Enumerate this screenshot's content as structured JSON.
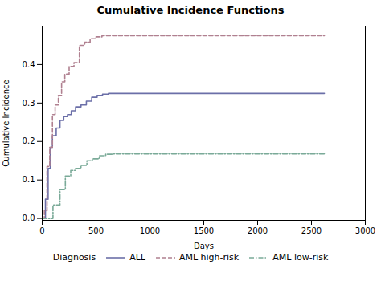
{
  "chart_data": {
    "type": "line",
    "title": "Cumulative Incidence Functions",
    "xlabel": "Days",
    "ylabel": "Cumulative Incidence",
    "xlim": [
      0,
      3000
    ],
    "ylim": [
      -0.005,
      0.5
    ],
    "xticks": [
      0,
      500,
      1000,
      1500,
      2000,
      2500,
      3000
    ],
    "yticks": [
      {
        "value": 0,
        "label": "0.0"
      },
      0.1,
      0.2,
      0.3,
      0.4
    ],
    "grid": false,
    "legend": "bottom",
    "legend_title": "Diagnosis",
    "series": [
      {
        "name": "ALL",
        "color": "#6b6fa8",
        "line_style": "solid",
        "x": [
          0,
          0,
          30,
          30,
          55,
          55,
          75,
          75,
          95,
          95,
          130,
          130,
          165,
          165,
          200,
          200,
          235,
          235,
          270,
          270,
          310,
          310,
          360,
          360,
          410,
          410,
          460,
          460,
          510,
          510,
          560,
          560,
          615,
          615,
          665,
          665,
          2080,
          2080,
          2620
        ],
        "values": [
          0,
          0,
          0,
          0.05,
          0.05,
          0.13,
          0.13,
          0.185,
          0.185,
          0.215,
          0.215,
          0.235,
          0.235,
          0.255,
          0.255,
          0.265,
          0.265,
          0.27,
          0.27,
          0.28,
          0.28,
          0.29,
          0.29,
          0.295,
          0.295,
          0.305,
          0.305,
          0.315,
          0.315,
          0.32,
          0.32,
          0.323,
          0.323,
          0.325,
          0.325,
          0.325,
          0.325,
          0.325,
          0.325
        ]
      },
      {
        "name": "AML high-risk",
        "color": "#b08090",
        "line_style": "dashed",
        "x": [
          0,
          0,
          20,
          20,
          45,
          45,
          70,
          70,
          95,
          95,
          120,
          120,
          150,
          150,
          180,
          180,
          210,
          210,
          250,
          250,
          295,
          295,
          345,
          345,
          395,
          395,
          445,
          445,
          500,
          500,
          555,
          555,
          2620
        ],
        "values": [
          0,
          0,
          0,
          0.02,
          0.02,
          0.135,
          0.135,
          0.185,
          0.185,
          0.27,
          0.27,
          0.295,
          0.295,
          0.32,
          0.32,
          0.355,
          0.355,
          0.375,
          0.375,
          0.395,
          0.395,
          0.405,
          0.405,
          0.45,
          0.45,
          0.458,
          0.458,
          0.467,
          0.467,
          0.472,
          0.472,
          0.475,
          0.475
        ]
      },
      {
        "name": "AML low-risk",
        "color": "#7aaa98",
        "line_style": "dashdot",
        "x": [
          0,
          0,
          100,
          100,
          165,
          165,
          215,
          215,
          265,
          265,
          310,
          310,
          360,
          360,
          415,
          415,
          465,
          465,
          530,
          530,
          590,
          590,
          655,
          655,
          720,
          720,
          2620
        ],
        "values": [
          0,
          0,
          0,
          0.035,
          0.035,
          0.075,
          0.075,
          0.11,
          0.11,
          0.125,
          0.125,
          0.13,
          0.13,
          0.138,
          0.138,
          0.15,
          0.15,
          0.155,
          0.155,
          0.163,
          0.163,
          0.167,
          0.167,
          0.168,
          0.168,
          0.168,
          0.168
        ]
      }
    ]
  }
}
